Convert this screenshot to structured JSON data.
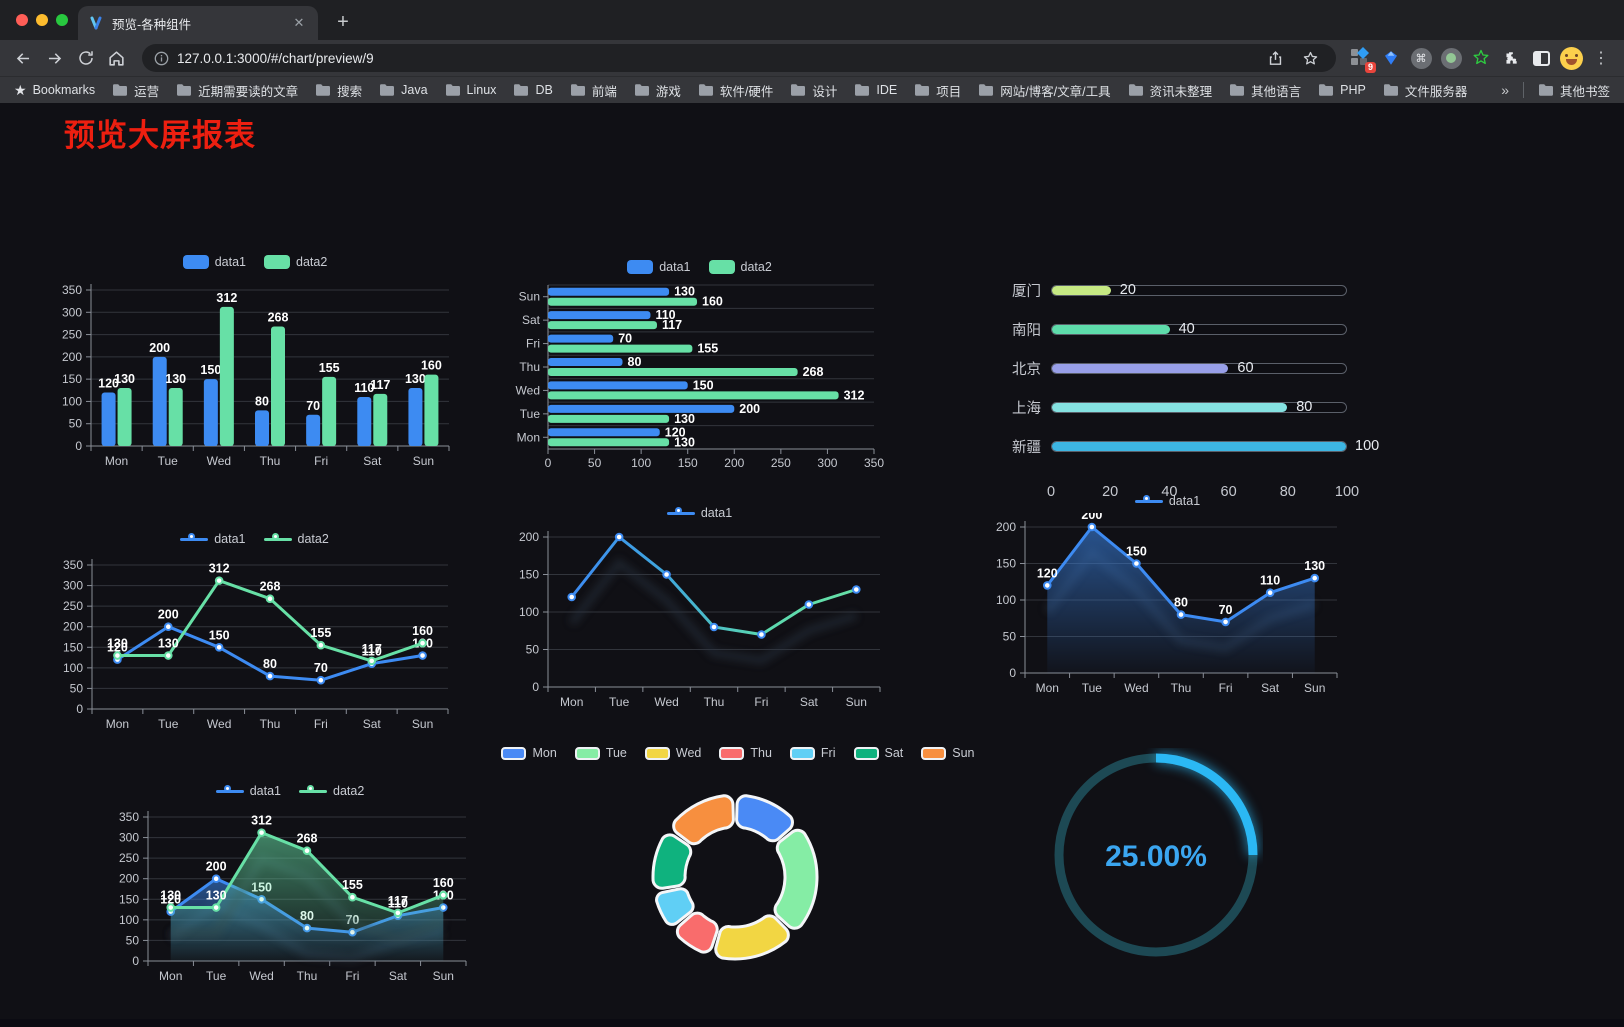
{
  "browser": {
    "tab": {
      "title": "预览-各种组件"
    },
    "url": "127.0.0.1:3000/#/chart/preview/9",
    "extension_badge": "9",
    "glyphs": {
      "close": "✕",
      "new_tab": "+",
      "menu": "⋮",
      "overflow": "»",
      "command": "⌘"
    },
    "bookmarks_label": "Bookmarks",
    "bookmarks": [
      "运营",
      "近期需要读的文章",
      "搜索",
      "Java",
      "Linux",
      "DB",
      "前端",
      "游戏",
      "软件/硬件",
      "设计",
      "IDE",
      "项目",
      "网站/博客/文章/工具",
      "资讯未整理",
      "其他语言",
      "PHP",
      "文件服务器"
    ],
    "other_bookmarks": "其他书签",
    "icon_names": [
      "back-icon",
      "forward-icon",
      "reload-icon",
      "home-icon",
      "info-icon",
      "share-icon",
      "star-icon",
      "extension-grid-icon",
      "extension-gem-icon",
      "extension-command-icon",
      "extension-dot-icon",
      "extension-star-icon",
      "extension-puzzle-icon",
      "extension-panel-icon",
      "profile-avatar",
      "menu-kebab-icon"
    ]
  },
  "page": {
    "title": "预览大屏报表",
    "title_color": "#ed1f10",
    "background": "#101015"
  },
  "theme": {
    "blue": "#3d8bf2",
    "green": "#67e0a6",
    "axis_text": "#c6c9d0",
    "grid_line": "#32353c",
    "axis_line": "#8a8f98"
  },
  "chart_data": [
    {
      "id": "grouped-bar-vertical",
      "type": "bar",
      "categories": [
        "Mon",
        "Tue",
        "Wed",
        "Thu",
        "Fri",
        "Sat",
        "Sun"
      ],
      "series": [
        {
          "name": "data1",
          "color": "#3d8bf2",
          "values": [
            120,
            200,
            150,
            80,
            70,
            110,
            130
          ]
        },
        {
          "name": "data2",
          "color": "#67e0a6",
          "values": [
            130,
            130,
            312,
            268,
            155,
            117,
            160
          ]
        }
      ],
      "ylim": [
        0,
        350
      ],
      "ystep": 50,
      "value_labels": true,
      "legend_position": "top",
      "grid": true
    },
    {
      "id": "grouped-bar-horizontal",
      "type": "bar-horizontal",
      "categories": [
        "Mon",
        "Tue",
        "Wed",
        "Thu",
        "Fri",
        "Sat",
        "Sun"
      ],
      "series": [
        {
          "name": "data1",
          "color": "#3d8bf2",
          "values": [
            120,
            200,
            150,
            80,
            70,
            110,
            130
          ]
        },
        {
          "name": "data2",
          "color": "#67e0a6",
          "values": [
            130,
            130,
            312,
            268,
            155,
            117,
            160
          ]
        }
      ],
      "xlim": [
        0,
        350
      ],
      "xstep": 50,
      "value_labels": true,
      "legend_position": "top"
    },
    {
      "id": "city-progress",
      "type": "bar-horizontal",
      "categories": [
        "厦门",
        "南阳",
        "北京",
        "上海",
        "新疆"
      ],
      "values": [
        20,
        40,
        60,
        80,
        100
      ],
      "colors": [
        "#c6e983",
        "#5edcab",
        "#989fe8",
        "#85e2e1",
        "#3db5e2"
      ],
      "xlim": [
        0,
        100
      ],
      "xticks": [
        0,
        20,
        40,
        60,
        80,
        100
      ],
      "value_labels": true
    },
    {
      "id": "line-two-series",
      "type": "line",
      "categories": [
        "Mon",
        "Tue",
        "Wed",
        "Thu",
        "Fri",
        "Sat",
        "Sun"
      ],
      "series": [
        {
          "name": "data1",
          "color": "#3d8bf2",
          "values": [
            120,
            200,
            150,
            80,
            70,
            110,
            130
          ]
        },
        {
          "name": "data2",
          "color": "#67e0a6",
          "values": [
            130,
            130,
            312,
            268,
            155,
            117,
            160
          ]
        }
      ],
      "ylim": [
        0,
        350
      ],
      "ystep": 50,
      "value_labels": true,
      "legend_position": "top"
    },
    {
      "id": "gradient-line",
      "type": "line",
      "categories": [
        "Mon",
        "Tue",
        "Wed",
        "Thu",
        "Fri",
        "Sat",
        "Sun"
      ],
      "series": [
        {
          "name": "data1",
          "color": "#3d8bf2",
          "gradient": [
            "#3d8bf2",
            "#3fa7dc",
            "#5bd8b0",
            "#67e0a6"
          ],
          "values": [
            120,
            200,
            150,
            80,
            70,
            110,
            130
          ]
        }
      ],
      "ylim": [
        0,
        200
      ],
      "ystep": 50,
      "value_labels": false,
      "shadow": true,
      "legend_position": "top"
    },
    {
      "id": "area-line",
      "type": "area",
      "categories": [
        "Mon",
        "Tue",
        "Wed",
        "Thu",
        "Fri",
        "Sat",
        "Sun"
      ],
      "series": [
        {
          "name": "data1",
          "color": "#3d8bf2",
          "area": true,
          "values": [
            120,
            200,
            150,
            80,
            70,
            110,
            130
          ]
        }
      ],
      "ylim": [
        0,
        200
      ],
      "ystep": 50,
      "value_labels": true,
      "shadow": true,
      "legend_position": "top"
    },
    {
      "id": "area-two-series",
      "type": "area",
      "categories": [
        "Mon",
        "Tue",
        "Wed",
        "Thu",
        "Fri",
        "Sat",
        "Sun"
      ],
      "series": [
        {
          "name": "data1",
          "color": "#3d8bf2",
          "area": true,
          "values": [
            120,
            200,
            150,
            80,
            70,
            110,
            130
          ]
        },
        {
          "name": "data2",
          "color": "#67e0a6",
          "area": true,
          "values": [
            130,
            130,
            312,
            268,
            155,
            117,
            160
          ]
        }
      ],
      "ylim": [
        0,
        350
      ],
      "ystep": 50,
      "value_labels": true,
      "shadow": true,
      "legend_position": "top"
    },
    {
      "id": "donut",
      "type": "pie",
      "categories": [
        "Mon",
        "Tue",
        "Wed",
        "Thu",
        "Fri",
        "Sat",
        "Sun"
      ],
      "values": [
        120,
        200,
        150,
        80,
        70,
        110,
        130
      ],
      "colors": [
        "#4a8af5",
        "#85eda5",
        "#f2d643",
        "#f96c6c",
        "#60cff5",
        "#0fb27e",
        "#f78f3f"
      ],
      "legend_position": "top",
      "inner_radius_ratio": 0.61
    },
    {
      "id": "gauge",
      "type": "gauge",
      "value": 25,
      "max": 100,
      "label": "25.00%",
      "color": "#2bb8f4",
      "track_color": "#1d4954",
      "label_color": "#3ba6f0"
    }
  ]
}
